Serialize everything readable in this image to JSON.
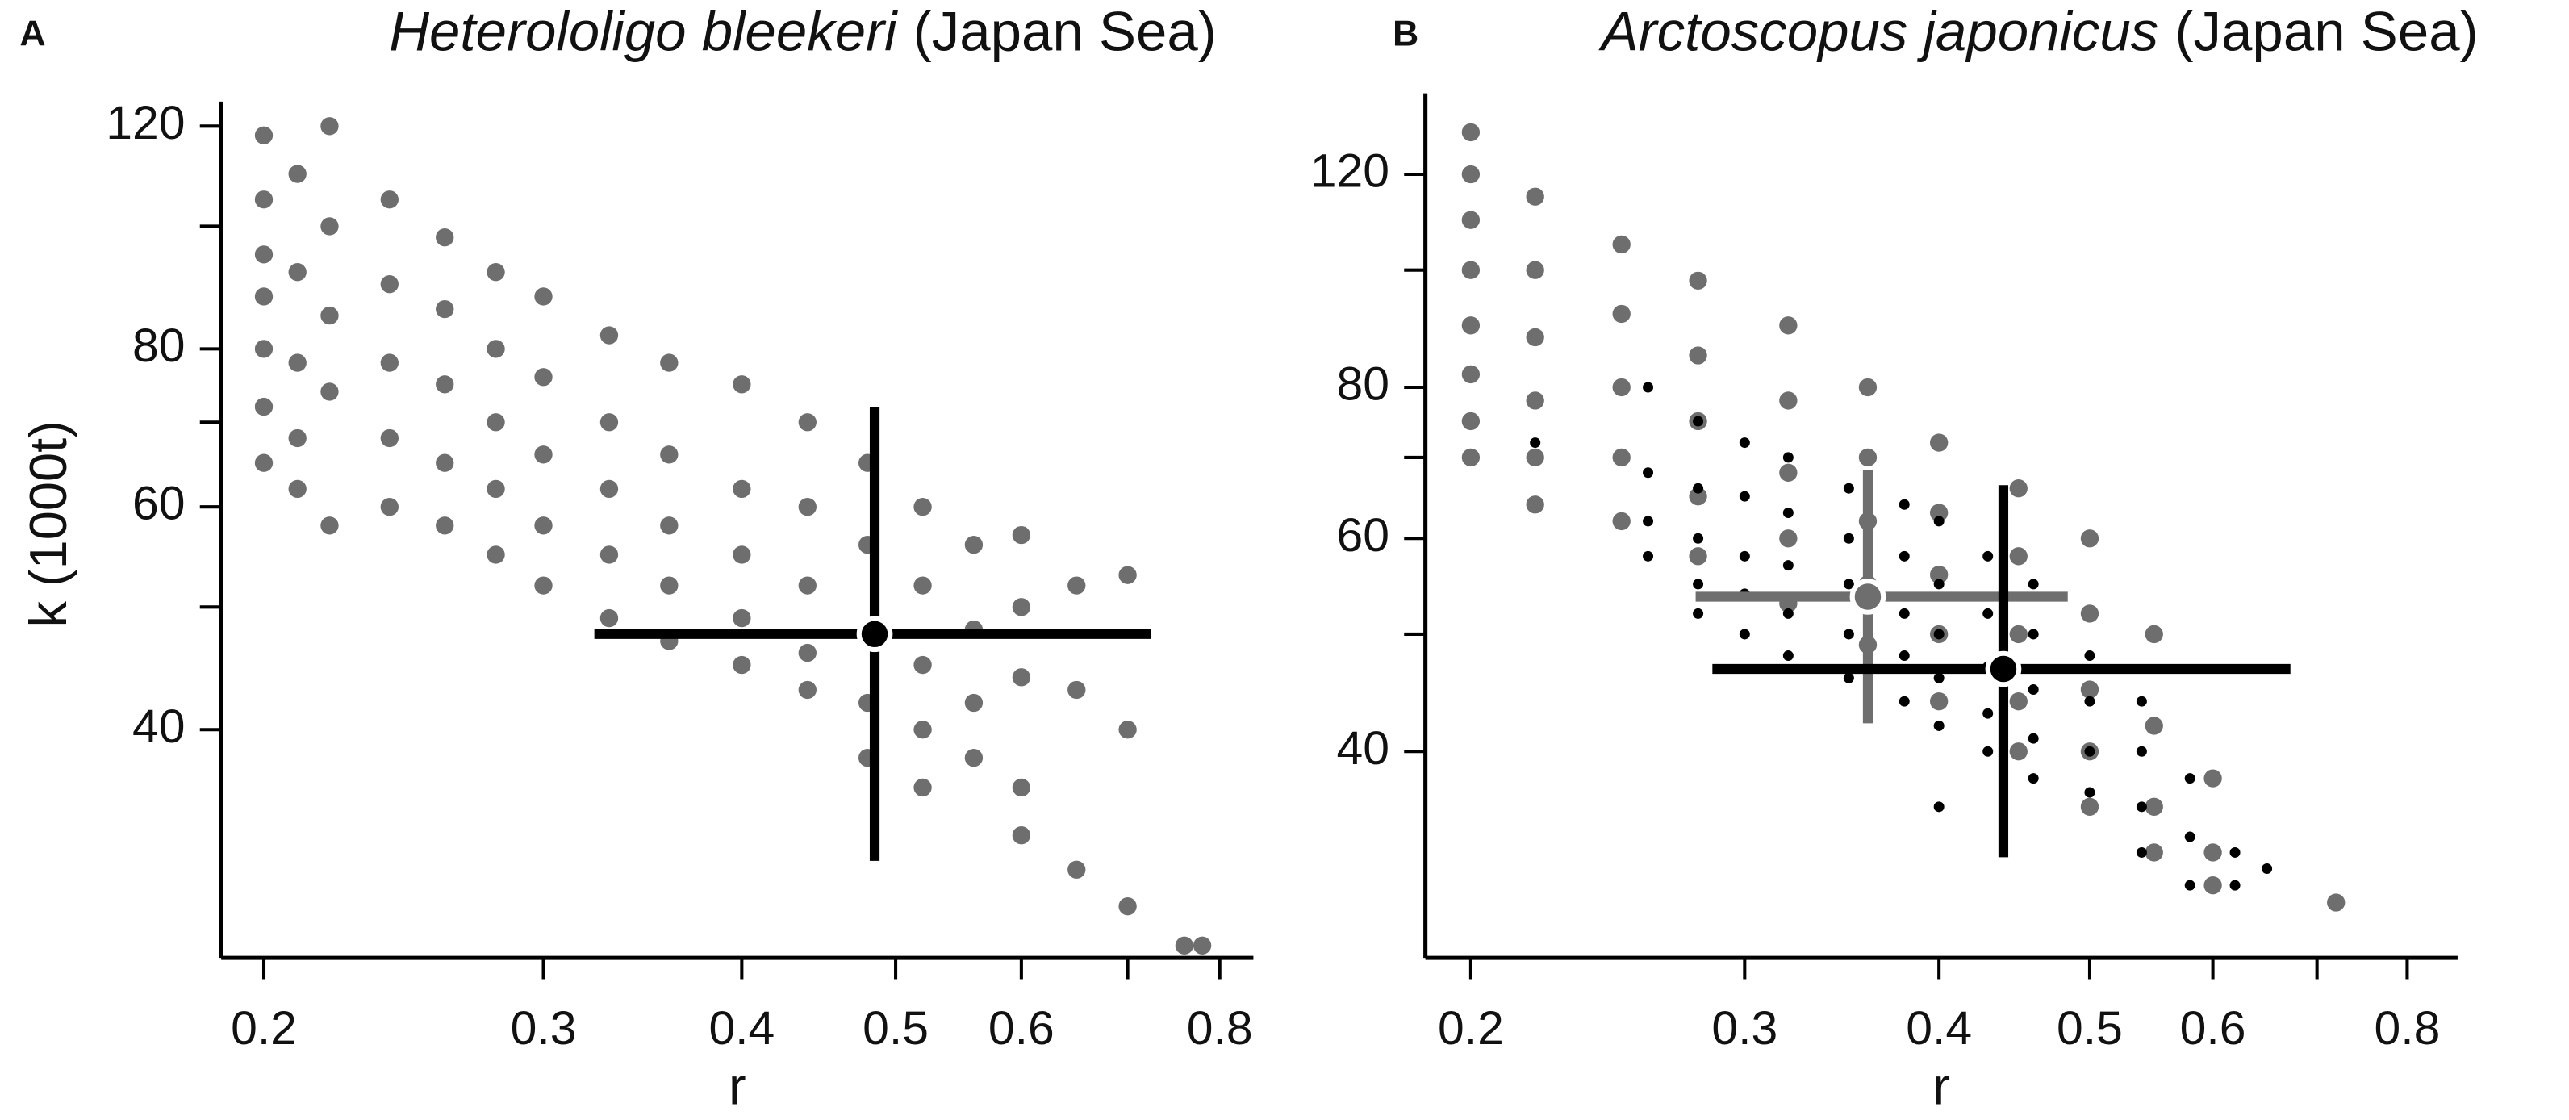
{
  "chart_data": [
    {
      "type": "scatter",
      "panel": "A",
      "title_species": "Heterololigo bleekeri",
      "title_note": "(Japan Sea)",
      "x_label": "r",
      "y_label": "k (1000t)",
      "log_x": true,
      "log_y": true,
      "xlim": [
        0.188,
        0.84
      ],
      "ylim": [
        26.4,
        125.5
      ],
      "xticks": [
        0.2,
        0.3,
        0.4,
        0.5,
        0.6,
        {
          "value": 0.7,
          "label": null
        },
        0.8
      ],
      "yticks": [
        40,
        {
          "value": 50,
          "label": null
        },
        60,
        {
          "value": 70,
          "label": null
        },
        80,
        {
          "value": 100,
          "label": null
        },
        120
      ],
      "series": [
        {
          "color": "#6e6e6e",
          "x": [
            0.2,
            0.2,
            0.2,
            0.2,
            0.2,
            0.2,
            0.2,
            0.21,
            0.21,
            0.21,
            0.21,
            0.21,
            0.22,
            0.22,
            0.22,
            0.22,
            0.22,
            0.24,
            0.24,
            0.24,
            0.24,
            0.24,
            0.26,
            0.26,
            0.26,
            0.26,
            0.26,
            0.28,
            0.28,
            0.28,
            0.28,
            0.28,
            0.3,
            0.3,
            0.3,
            0.3,
            0.3,
            0.33,
            0.33,
            0.33,
            0.33,
            0.33,
            0.36,
            0.36,
            0.36,
            0.36,
            0.36,
            0.4,
            0.4,
            0.4,
            0.4,
            0.4,
            0.44,
            0.44,
            0.44,
            0.44,
            0.44,
            0.48,
            0.48,
            0.48,
            0.48,
            0.48,
            0.52,
            0.52,
            0.52,
            0.52,
            0.52,
            0.56,
            0.56,
            0.56,
            0.56,
            0.6,
            0.6,
            0.6,
            0.6,
            0.6,
            0.65,
            0.65,
            0.65,
            0.7,
            0.7,
            0.7,
            0.76,
            0.78
          ],
          "values": [
            118,
            105,
            95,
            88,
            80,
            72,
            65,
            110,
            92,
            78,
            68,
            62,
            120,
            100,
            85,
            74,
            58,
            105,
            90,
            78,
            68,
            60,
            98,
            86,
            75,
            65,
            58,
            92,
            80,
            70,
            62,
            55,
            88,
            76,
            66,
            58,
            52,
            82,
            70,
            62,
            55,
            49,
            78,
            66,
            58,
            52,
            47,
            75,
            62,
            55,
            49,
            45,
            70,
            60,
            52,
            46,
            43,
            65,
            56,
            48,
            42,
            38,
            60,
            52,
            45,
            40,
            36,
            56,
            48,
            42,
            38,
            57,
            50,
            44,
            36,
            33,
            52,
            43,
            31,
            53,
            40,
            29,
            27,
            27
          ]
        }
      ],
      "estimates": [
        {
          "color": "#000000",
          "x": 0.485,
          "y": 47.6,
          "x_range": [
            0.323,
            0.724
          ],
          "y_range": [
            31.5,
            72
          ]
        }
      ]
    },
    {
      "type": "scatter",
      "panel": "B",
      "title_species": "Arctoscopus japonicus",
      "title_note": "(Japan Sea)",
      "x_label": "r",
      "log_x": true,
      "log_y": true,
      "xlim": [
        0.187,
        0.862
      ],
      "ylim": [
        27,
        140
      ],
      "xticks": [
        0.2,
        0.3,
        0.4,
        0.5,
        0.6,
        {
          "value": 0.7,
          "label": null
        },
        0.8
      ],
      "yticks": [
        40,
        {
          "value": 50,
          "label": null
        },
        60,
        {
          "value": 70,
          "label": null
        },
        80,
        {
          "value": 100,
          "label": null
        },
        120
      ],
      "series": [
        {
          "color": "#6e6e6e",
          "x": [
            0.2,
            0.2,
            0.2,
            0.2,
            0.2,
            0.2,
            0.2,
            0.2,
            0.22,
            0.22,
            0.22,
            0.22,
            0.22,
            0.22,
            0.25,
            0.25,
            0.25,
            0.25,
            0.25,
            0.28,
            0.28,
            0.28,
            0.28,
            0.28,
            0.32,
            0.32,
            0.32,
            0.32,
            0.32,
            0.36,
            0.36,
            0.36,
            0.36,
            0.36,
            0.4,
            0.4,
            0.4,
            0.4,
            0.4,
            0.45,
            0.45,
            0.45,
            0.45,
            0.45,
            0.5,
            0.5,
            0.5,
            0.5,
            0.5,
            0.55,
            0.55,
            0.55,
            0.55,
            0.6,
            0.6,
            0.6,
            0.72
          ],
          "values": [
            130,
            120,
            110,
            100,
            90,
            82,
            75,
            70,
            115,
            100,
            88,
            78,
            70,
            64,
            105,
            92,
            80,
            70,
            62,
            98,
            85,
            75,
            65,
            58,
            90,
            78,
            68,
            60,
            53,
            80,
            70,
            62,
            55,
            49,
            72,
            63,
            56,
            50,
            44,
            66,
            58,
            50,
            44,
            40,
            60,
            52,
            45,
            40,
            36,
            50,
            42,
            36,
            33,
            38,
            33,
            31,
            30
          ]
        },
        {
          "color": "#000000",
          "x": [
            0.22,
            0.26,
            0.26,
            0.26,
            0.26,
            0.28,
            0.28,
            0.28,
            0.28,
            0.28,
            0.3,
            0.3,
            0.3,
            0.3,
            0.3,
            0.32,
            0.32,
            0.32,
            0.32,
            0.32,
            0.35,
            0.35,
            0.35,
            0.35,
            0.35,
            0.38,
            0.38,
            0.38,
            0.38,
            0.38,
            0.4,
            0.4,
            0.4,
            0.4,
            0.4,
            0.4,
            0.43,
            0.43,
            0.43,
            0.43,
            0.43,
            0.46,
            0.46,
            0.46,
            0.46,
            0.46,
            0.5,
            0.5,
            0.5,
            0.5,
            0.54,
            0.54,
            0.54,
            0.54,
            0.58,
            0.58,
            0.58,
            0.62,
            0.62,
            0.65
          ],
          "values": [
            72,
            80,
            68,
            62,
            58,
            75,
            66,
            60,
            55,
            52,
            72,
            65,
            58,
            54,
            50,
            70,
            63,
            57,
            52,
            48,
            66,
            60,
            55,
            50,
            46,
            64,
            58,
            52,
            48,
            44,
            62,
            55,
            50,
            46,
            42,
            36,
            58,
            52,
            47,
            43,
            40,
            55,
            50,
            45,
            41,
            38,
            48,
            44,
            40,
            37,
            44,
            40,
            36,
            33,
            38,
            34,
            31,
            33,
            31,
            32
          ]
        }
      ],
      "estimates": [
        {
          "color": "#6e6e6e",
          "x": 0.36,
          "y": 53.7,
          "x_range": [
            0.279,
            0.484
          ],
          "y_range": [
            42.2,
            68.4
          ]
        },
        {
          "color": "#000000",
          "x": 0.44,
          "y": 46.8,
          "x_range": [
            0.286,
            0.673
          ],
          "y_range": [
            32.7,
            66.4
          ]
        }
      ]
    }
  ]
}
